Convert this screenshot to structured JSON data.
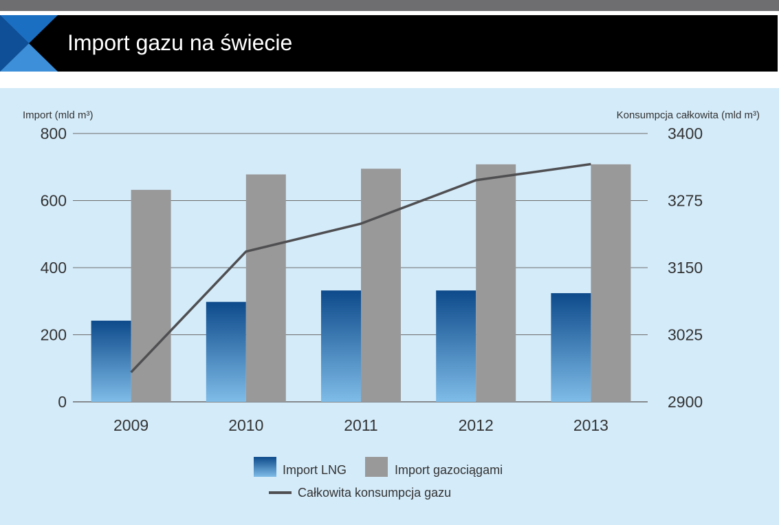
{
  "header": {
    "title": "Import gazu na świecie"
  },
  "chart_data": {
    "type": "bar",
    "title": "Import gazu na świecie",
    "categories": [
      "2009",
      "2010",
      "2011",
      "2012",
      "2013"
    ],
    "series": [
      {
        "name": "Import LNG",
        "type": "bar",
        "axis": "left",
        "values": [
          242,
          298,
          332,
          332,
          324
        ]
      },
      {
        "name": "Import gazociągami",
        "type": "bar",
        "axis": "left",
        "values": [
          632,
          678,
          695,
          708,
          708
        ]
      },
      {
        "name": "Całkowita konsumpcja gazu",
        "type": "line",
        "axis": "right",
        "values": [
          2955,
          3180,
          3232,
          3313,
          3343
        ]
      }
    ],
    "ylabel_left": "Import (mld m³)",
    "ylabel_right": "Konsumpcja całkowita (mld m³)",
    "ylim_left": [
      0,
      800
    ],
    "ylim_right": [
      2900,
      3400
    ],
    "yticks_left": [
      0,
      200,
      400,
      600,
      800
    ],
    "yticks_right": [
      2900,
      3025,
      3150,
      3275,
      3400
    ],
    "grid": true,
    "legend_position": "bottom",
    "colors": {
      "lng_top": "#0d4a8b",
      "lng_bottom": "#7fbce8",
      "pipeline": "#999999",
      "line": "#4f4f52",
      "grid": "#6b6b6b",
      "background": "#d4ebf9"
    }
  }
}
